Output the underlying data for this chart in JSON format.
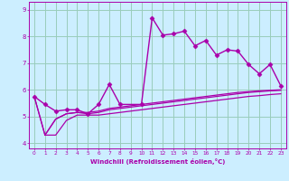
{
  "xlabel": "Windchill (Refroidissement éolien,°C)",
  "ylabel": "",
  "background_color": "#cceeff",
  "grid_color": "#99ccbb",
  "line_color": "#aa00aa",
  "xlim": [
    -0.5,
    23.5
  ],
  "ylim": [
    3.8,
    9.3
  ],
  "xticks": [
    0,
    1,
    2,
    3,
    4,
    5,
    6,
    7,
    8,
    9,
    10,
    11,
    12,
    13,
    14,
    15,
    16,
    17,
    18,
    19,
    20,
    21,
    22,
    23
  ],
  "yticks": [
    4,
    5,
    6,
    7,
    8,
    9
  ],
  "series": [
    {
      "x": [
        0,
        1,
        2,
        3,
        4,
        5,
        6,
        7,
        8,
        10,
        11,
        12,
        13,
        14,
        15,
        16,
        17,
        18,
        19,
        20,
        21,
        22,
        23
      ],
      "y": [
        5.75,
        5.45,
        5.2,
        5.25,
        5.25,
        5.1,
        5.45,
        6.2,
        5.45,
        5.45,
        8.7,
        8.05,
        8.1,
        8.2,
        7.65,
        7.85,
        7.3,
        7.5,
        7.45,
        6.95,
        6.6,
        6.95,
        6.15
      ],
      "marker": "D",
      "markersize": 2.5,
      "linewidth": 1.0
    },
    {
      "x": [
        0,
        1,
        2,
        3,
        4,
        5,
        6,
        7,
        8,
        9,
        10,
        11,
        12,
        13,
        14,
        15,
        16,
        17,
        18,
        19,
        20,
        21,
        22,
        23
      ],
      "y": [
        5.75,
        4.3,
        4.9,
        5.1,
        5.15,
        5.15,
        5.2,
        5.3,
        5.35,
        5.4,
        5.45,
        5.5,
        5.55,
        5.6,
        5.65,
        5.7,
        5.75,
        5.8,
        5.85,
        5.9,
        5.93,
        5.96,
        5.98,
        6.0
      ],
      "marker": null,
      "markersize": 0,
      "linewidth": 0.9
    },
    {
      "x": [
        0,
        1,
        2,
        3,
        4,
        5,
        6,
        7,
        8,
        9,
        10,
        11,
        12,
        13,
        14,
        15,
        16,
        17,
        18,
        19,
        20,
        21,
        22,
        23
      ],
      "y": [
        5.75,
        4.3,
        4.9,
        5.1,
        5.15,
        5.1,
        5.15,
        5.25,
        5.3,
        5.35,
        5.4,
        5.45,
        5.5,
        5.55,
        5.6,
        5.65,
        5.7,
        5.75,
        5.8,
        5.85,
        5.9,
        5.93,
        5.96,
        5.98
      ],
      "marker": null,
      "markersize": 0,
      "linewidth": 0.9
    },
    {
      "x": [
        1,
        2,
        3,
        4,
        5,
        6,
        7,
        8,
        9,
        10,
        11,
        12,
        13,
        14,
        15,
        16,
        17,
        18,
        19,
        20,
        21,
        22,
        23
      ],
      "y": [
        4.3,
        4.3,
        4.85,
        5.05,
        5.05,
        5.05,
        5.1,
        5.15,
        5.2,
        5.25,
        5.3,
        5.35,
        5.4,
        5.45,
        5.5,
        5.55,
        5.6,
        5.65,
        5.7,
        5.75,
        5.78,
        5.82,
        5.85
      ],
      "marker": null,
      "markersize": 0,
      "linewidth": 0.9
    }
  ]
}
